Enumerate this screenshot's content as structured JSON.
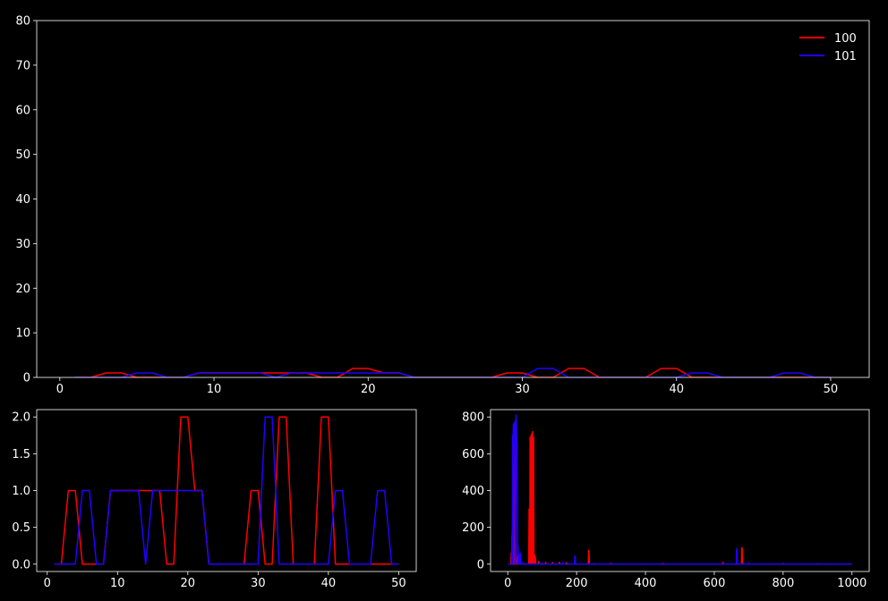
{
  "colors": {
    "background": "#000000",
    "foreground": "#ffffff",
    "series_100": "#ff0000",
    "series_101": "#2200ff"
  },
  "chart_data": [
    {
      "type": "line",
      "title": "",
      "xlabel": "",
      "ylabel": "",
      "xlim": [
        -1.5,
        52.5
      ],
      "ylim": [
        0,
        80
      ],
      "xticks": [
        0,
        10,
        20,
        30,
        40,
        50
      ],
      "yticks": [
        0,
        10,
        20,
        30,
        40,
        50,
        60,
        70,
        80
      ],
      "legend": {
        "placement": "top-right"
      },
      "x": [
        1,
        2,
        3,
        4,
        5,
        6,
        7,
        8,
        9,
        10,
        11,
        12,
        13,
        14,
        15,
        16,
        17,
        18,
        19,
        20,
        21,
        22,
        23,
        24,
        25,
        26,
        27,
        28,
        29,
        30,
        31,
        32,
        33,
        34,
        35,
        36,
        37,
        38,
        39,
        40,
        41,
        42,
        43,
        44,
        45,
        46,
        47,
        48,
        49,
        50
      ],
      "series": [
        {
          "name": "100",
          "color": "#ff0000",
          "values": [
            0,
            0,
            1,
            1,
            0,
            0,
            0,
            0,
            1,
            1,
            1,
            1,
            1,
            1,
            1,
            1,
            0,
            0,
            2,
            2,
            1,
            1,
            0,
            0,
            0,
            0,
            0,
            0,
            1,
            1,
            0,
            0,
            2,
            2,
            0,
            0,
            0,
            0,
            2,
            2,
            0,
            0,
            0,
            0,
            0,
            0,
            0,
            0,
            0,
            0
          ]
        },
        {
          "name": "101",
          "color": "#2200ff",
          "values": [
            0,
            0,
            0,
            0,
            1,
            1,
            0,
            0,
            1,
            1,
            1,
            1,
            1,
            0,
            1,
            1,
            1,
            1,
            1,
            1,
            1,
            1,
            0,
            0,
            0,
            0,
            0,
            0,
            0,
            0,
            2,
            2,
            0,
            0,
            0,
            0,
            0,
            0,
            0,
            0,
            1,
            1,
            0,
            0,
            0,
            0,
            1,
            1,
            0,
            0
          ]
        }
      ]
    },
    {
      "type": "line",
      "title": "",
      "xlabel": "",
      "ylabel": "",
      "xlim": [
        -1.5,
        52.5
      ],
      "ylim": [
        -0.1,
        2.1
      ],
      "xticks": [
        0,
        10,
        20,
        30,
        40,
        50
      ],
      "yticks": [
        0.0,
        0.5,
        1.0,
        1.5,
        2.0
      ],
      "ytick_labels": [
        "0.0",
        "0.5",
        "1.0",
        "1.5",
        "2.0"
      ],
      "x": [
        1,
        2,
        3,
        4,
        5,
        6,
        7,
        8,
        9,
        10,
        11,
        12,
        13,
        14,
        15,
        16,
        17,
        18,
        19,
        20,
        21,
        22,
        23,
        24,
        25,
        26,
        27,
        28,
        29,
        30,
        31,
        32,
        33,
        34,
        35,
        36,
        37,
        38,
        39,
        40,
        41,
        42,
        43,
        44,
        45,
        46,
        47,
        48,
        49,
        50
      ],
      "series": [
        {
          "name": "",
          "color": "#ff0000",
          "values": [
            0,
            0,
            1,
            1,
            0,
            0,
            0,
            0,
            1,
            1,
            1,
            1,
            1,
            1,
            1,
            1,
            0,
            0,
            2,
            2,
            1,
            1,
            0,
            0,
            0,
            0,
            0,
            0,
            1,
            1,
            0,
            0,
            2,
            2,
            0,
            0,
            0,
            0,
            2,
            2,
            0,
            0,
            0,
            0,
            0,
            0,
            0,
            0,
            0,
            0
          ]
        },
        {
          "name": "",
          "color": "#2200ff",
          "values": [
            0,
            0,
            0,
            0,
            1,
            1,
            0,
            0,
            1,
            1,
            1,
            1,
            1,
            0,
            1,
            1,
            1,
            1,
            1,
            1,
            1,
            1,
            0,
            0,
            0,
            0,
            0,
            0,
            0,
            0,
            2,
            2,
            0,
            0,
            0,
            0,
            0,
            0,
            0,
            0,
            1,
            1,
            0,
            0,
            0,
            0,
            1,
            1,
            0,
            0
          ]
        }
      ]
    },
    {
      "type": "line",
      "title": "",
      "xlabel": "",
      "ylabel": "",
      "xlim": [
        -50,
        1050
      ],
      "ylim": [
        -40,
        840
      ],
      "xticks": [
        0,
        200,
        400,
        600,
        800,
        1000
      ],
      "yticks": [
        0,
        200,
        400,
        600,
        800
      ],
      "x_range": [
        1,
        1000
      ],
      "series": [
        {
          "name": "",
          "color": "#ff0000",
          "spikes": [
            [
              10,
              60
            ],
            [
              13,
              180
            ],
            [
              17,
              500
            ],
            [
              20,
              650
            ],
            [
              23,
              120
            ],
            [
              27,
              40
            ],
            [
              62,
              300
            ],
            [
              65,
              690
            ],
            [
              68,
              700
            ],
            [
              70,
              710
            ],
            [
              72,
              720
            ],
            [
              75,
              690
            ],
            [
              78,
              50
            ],
            [
              80,
              40
            ],
            [
              90,
              15
            ],
            [
              110,
              10
            ],
            [
              130,
              8
            ],
            [
              150,
              10
            ],
            [
              170,
              8
            ],
            [
              235,
              75
            ],
            [
              236,
              70
            ],
            [
              300,
              5
            ],
            [
              450,
              4
            ],
            [
              625,
              10
            ],
            [
              680,
              90
            ],
            [
              681,
              85
            ],
            [
              700,
              5
            ],
            [
              800,
              3
            ],
            [
              900,
              3
            ]
          ]
        },
        {
          "name": "",
          "color": "#2200ff",
          "spikes": [
            [
              12,
              150
            ],
            [
              14,
              700
            ],
            [
              16,
              760
            ],
            [
              17,
              740
            ],
            [
              18,
              750
            ],
            [
              19,
              770
            ],
            [
              20,
              720
            ],
            [
              22,
              780
            ],
            [
              24,
              810
            ],
            [
              25,
              760
            ],
            [
              26,
              700
            ],
            [
              27,
              650
            ],
            [
              28,
              300
            ],
            [
              30,
              100
            ],
            [
              33,
              50
            ],
            [
              35,
              40
            ],
            [
              37,
              60
            ],
            [
              45,
              10
            ],
            [
              100,
              8
            ],
            [
              160,
              10
            ],
            [
              195,
              45
            ],
            [
              196,
              40
            ],
            [
              250,
              5
            ],
            [
              400,
              3
            ],
            [
              628,
              5
            ],
            [
              665,
              85
            ],
            [
              666,
              80
            ],
            [
              700,
              5
            ],
            [
              850,
              2
            ],
            [
              950,
              2
            ]
          ]
        }
      ]
    }
  ]
}
